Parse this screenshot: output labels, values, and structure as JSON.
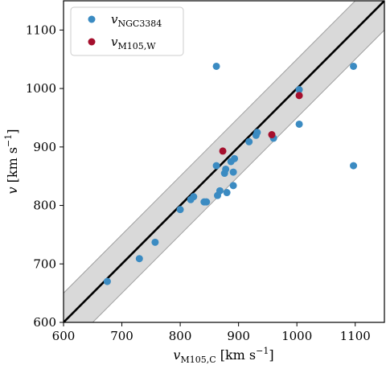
{
  "chart_data": {
    "type": "scatter",
    "xlabel": {
      "main": "v",
      "sub": "M105,C",
      "unit_open": " [km s",
      "unit_sup": "−1",
      "unit_close": "]"
    },
    "ylabel": {
      "main": "v",
      "unit_open": " [km s",
      "unit_sup": "−1",
      "unit_close": "]"
    },
    "xlim": [
      600,
      1150
    ],
    "ylim": [
      600,
      1150
    ],
    "x_ticks": [
      "600",
      "700",
      "800",
      "900",
      "1000",
      "1100"
    ],
    "y_ticks": [
      "600",
      "700",
      "800",
      "900",
      "1000",
      "1100"
    ],
    "grid": false,
    "legend_position": "top-left",
    "band_halfwidth": 50,
    "line": "y = x",
    "series": [
      {
        "name_main": "v",
        "name_sub": "NGC3384",
        "color": "#3b8bc2",
        "points": [
          [
            675,
            670
          ],
          [
            730,
            709
          ],
          [
            757,
            737
          ],
          [
            800,
            793
          ],
          [
            818,
            810
          ],
          [
            823,
            815
          ],
          [
            841,
            806
          ],
          [
            845,
            806
          ],
          [
            862,
            868
          ],
          [
            864,
            817
          ],
          [
            868,
            825
          ],
          [
            876,
            855
          ],
          [
            878,
            862
          ],
          [
            880,
            822
          ],
          [
            887,
            875
          ],
          [
            891,
            834
          ],
          [
            891,
            857
          ],
          [
            893,
            880
          ],
          [
            918,
            909
          ],
          [
            930,
            920
          ],
          [
            932,
            925
          ],
          [
            960,
            915
          ],
          [
            1004,
            939
          ],
          [
            1004,
            998
          ],
          [
            862,
            1038
          ],
          [
            1097,
            1038
          ],
          [
            1097,
            868
          ]
        ]
      },
      {
        "name_main": "v",
        "name_sub": "M105,W",
        "color": "#a50f2d",
        "points": [
          [
            873,
            893
          ],
          [
            957,
            921
          ],
          [
            1004,
            988
          ]
        ]
      }
    ]
  }
}
